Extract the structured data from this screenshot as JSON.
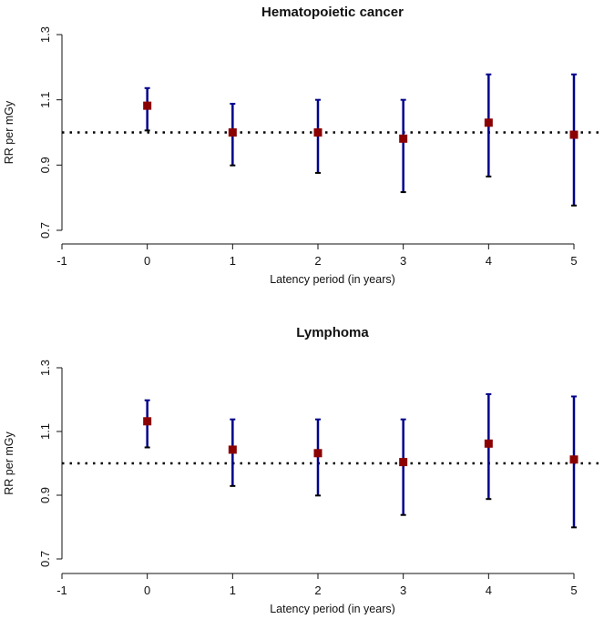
{
  "chart_data": [
    {
      "type": "scatter",
      "title": "Hematopoietic cancer",
      "xlabel": "Latency period (in years)",
      "ylabel": "RR per mGy",
      "xlim": [
        -1,
        5
      ],
      "ylim": [
        0.7,
        1.3
      ],
      "xticks": [
        "-1",
        "0",
        "1",
        "2",
        "3",
        "4",
        "5"
      ],
      "yticks": [
        "0.7",
        "0.9",
        "1.1",
        "1.3"
      ],
      "reference_line": 1.0,
      "x": [
        0,
        1,
        2,
        3,
        4,
        5
      ],
      "estimate": [
        1.082,
        1.0,
        1.0,
        0.981,
        1.03,
        0.993
      ],
      "ci_lower": [
        1.006,
        0.899,
        0.876,
        0.817,
        0.865,
        0.776
      ],
      "ci_upper": [
        1.136,
        1.088,
        1.1,
        1.1,
        1.178,
        1.178
      ],
      "colors": {
        "point": "#8b0000",
        "bar": "#00008b",
        "cap": "#000000"
      }
    },
    {
      "type": "scatter",
      "title": "Lymphoma",
      "xlabel": "Latency period (in years)",
      "ylabel": "RR per mGy",
      "xlim": [
        -1,
        5
      ],
      "ylim": [
        0.7,
        1.3
      ],
      "xticks": [
        "-1",
        "0",
        "1",
        "2",
        "3",
        "4",
        "5"
      ],
      "yticks": [
        "0.7",
        "0.9",
        "1.1",
        "1.3"
      ],
      "reference_line": 1.0,
      "x": [
        0,
        1,
        2,
        3,
        4,
        5
      ],
      "estimate": [
        1.132,
        1.043,
        1.032,
        1.004,
        1.062,
        1.012
      ],
      "ci_lower": [
        1.05,
        0.929,
        0.899,
        0.838,
        0.888,
        0.799
      ],
      "ci_upper": [
        1.198,
        1.138,
        1.138,
        1.138,
        1.217,
        1.21
      ],
      "colors": {
        "point": "#8b0000",
        "bar": "#00008b",
        "cap": "#000000"
      }
    }
  ]
}
